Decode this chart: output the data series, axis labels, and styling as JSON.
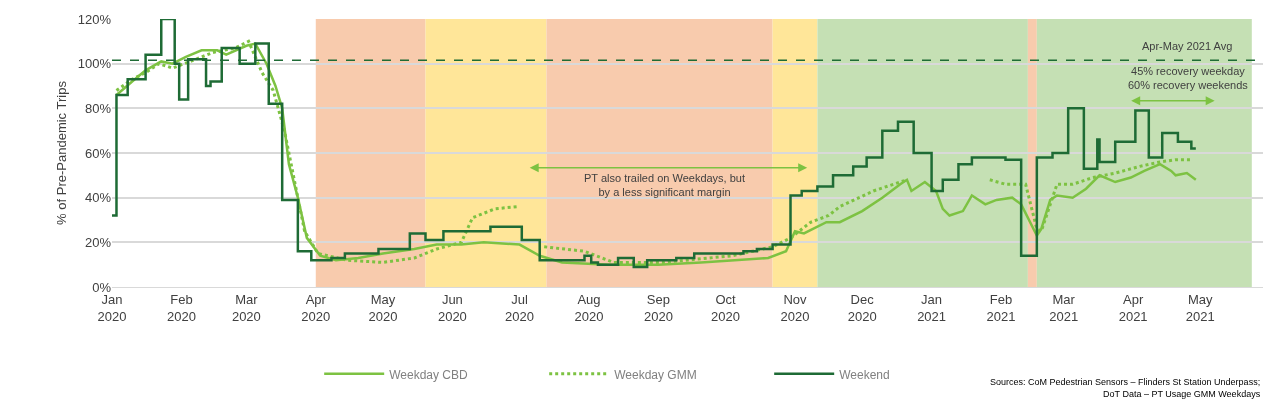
{
  "chart_data": {
    "type": "line",
    "ylabel": "% of Pre-Pandemic Trips",
    "xlim": [
      "2020-01-01",
      "2021-05-29"
    ],
    "xticks": [
      {
        "value": "2020-01-01",
        "label": "Jan\n2020"
      },
      {
        "value": "2020-02-01",
        "label": "Feb\n2020"
      },
      {
        "value": "2020-03-01",
        "label": "Mar\n2020"
      },
      {
        "value": "2020-04-01",
        "label": "Apr\n2020"
      },
      {
        "value": "2020-05-01",
        "label": "May\n2020"
      },
      {
        "value": "2020-06-01",
        "label": "Jun\n2020"
      },
      {
        "value": "2020-07-01",
        "label": "Jul\n2020"
      },
      {
        "value": "2020-08-01",
        "label": "Aug\n2020"
      },
      {
        "value": "2020-09-01",
        "label": "Sep\n2020"
      },
      {
        "value": "2020-10-01",
        "label": "Oct\n2020"
      },
      {
        "value": "2020-11-01",
        "label": "Nov\n2020"
      },
      {
        "value": "2020-12-01",
        "label": "Dec\n2020"
      },
      {
        "value": "2021-01-01",
        "label": "Jan\n2021"
      },
      {
        "value": "2021-02-01",
        "label": "Feb\n2021"
      },
      {
        "value": "2021-03-01",
        "label": "Mar\n2021"
      },
      {
        "value": "2021-04-01",
        "label": "Apr\n2021"
      },
      {
        "value": "2021-05-01",
        "label": "May\n2021"
      }
    ],
    "ylim": [
      0,
      120
    ],
    "yticks": [
      {
        "value": 0,
        "label": "0%"
      },
      {
        "value": 20,
        "label": "20%"
      },
      {
        "value": 40,
        "label": "40%"
      },
      {
        "value": 60,
        "label": "60%"
      },
      {
        "value": 80,
        "label": "80%"
      },
      {
        "value": 100,
        "label": "100%"
      },
      {
        "value": 120,
        "label": "120%"
      }
    ],
    "grid": "y",
    "legend": "bottom",
    "bands": [
      {
        "axis": "x",
        "from": "2020-04-01",
        "to": "2020-05-20",
        "color": "#f8cbad"
      },
      {
        "axis": "x",
        "from": "2020-05-20",
        "to": "2020-07-13",
        "color": "#ffe699"
      },
      {
        "axis": "x",
        "from": "2020-07-13",
        "to": "2020-10-22",
        "color": "#f8cbad"
      },
      {
        "axis": "x",
        "from": "2020-10-22",
        "to": "2020-11-11",
        "color": "#ffe699"
      },
      {
        "axis": "x",
        "from": "2020-11-11",
        "to": "2021-02-13",
        "color": "#c5e0b4"
      },
      {
        "axis": "x",
        "from": "2021-02-13",
        "to": "2021-02-17",
        "color": "#f8cbad"
      },
      {
        "axis": "x",
        "from": "2021-02-17",
        "to": "2021-05-24",
        "color": "#c5e0b4"
      }
    ],
    "ref_lines": [
      {
        "axis": "y",
        "value": 101.5,
        "label": "Apr-May 2021 Avg",
        "color": "#1e6b35",
        "line_style": "dashed"
      }
    ],
    "annotations": [
      "PT also trailed on Weekdays, but\nby a less significant margin",
      "45% recovery weekday\n60% recovery weekends",
      "Sources: CoM Pedestrian Sensors – Flinders St Station Underpass;\nDoT Data – PT Usage GMM Weekdays"
    ],
    "series": [
      {
        "name": "Weekday CBD",
        "color": "#7dc242",
        "line_style": "solid",
        "x": [
          "2020-01-03",
          "2020-01-10",
          "2020-01-16",
          "2020-01-23",
          "2020-01-28",
          "2020-02-03",
          "2020-02-10",
          "2020-02-17",
          "2020-02-21",
          "2020-03-01",
          "2020-03-05",
          "2020-03-10",
          "2020-03-14",
          "2020-03-17",
          "2020-03-20",
          "2020-03-24",
          "2020-03-28",
          "2020-04-03",
          "2020-04-10",
          "2020-04-20",
          "2020-05-01",
          "2020-05-15",
          "2020-05-25",
          "2020-06-05",
          "2020-06-15",
          "2020-07-01",
          "2020-07-10",
          "2020-07-20",
          "2020-08-10",
          "2020-09-01",
          "2020-09-20",
          "2020-10-05",
          "2020-10-20",
          "2020-10-28",
          "2020-11-01",
          "2020-11-05",
          "2020-11-15",
          "2020-11-21",
          "2020-12-01",
          "2020-12-10",
          "2020-12-18",
          "2020-12-21",
          "2020-12-23",
          "2020-12-29",
          "2021-01-03",
          "2021-01-06",
          "2021-01-09",
          "2021-01-15",
          "2021-01-19",
          "2021-01-25",
          "2021-01-30",
          "2021-02-06",
          "2021-02-10",
          "2021-02-17",
          "2021-02-19",
          "2021-02-23",
          "2021-02-26",
          "2021-03-05",
          "2021-03-11",
          "2021-03-17",
          "2021-03-24",
          "2021-03-31",
          "2021-04-06",
          "2021-04-13",
          "2021-04-18",
          "2021-04-20",
          "2021-04-25",
          "2021-04-29"
        ],
        "values": [
          86,
          92,
          97,
          101,
          100,
          103,
          106,
          106,
          104,
          108,
          109,
          100,
          90,
          80,
          55,
          40,
          22,
          14,
          12,
          13,
          15,
          17,
          19,
          19,
          20,
          19,
          14,
          11,
          10,
          10,
          11,
          12,
          13,
          16,
          25,
          24,
          29,
          29,
          34,
          40,
          46,
          48,
          43,
          47,
          43,
          35,
          32,
          34,
          41,
          37,
          39,
          40,
          37,
          23,
          26,
          39,
          41,
          40,
          44,
          50,
          47,
          49,
          52,
          55,
          52,
          50,
          51,
          48
        ]
      },
      {
        "name": "Weekday GMM",
        "color": "#7dc242",
        "line_style": "dotted",
        "x": [
          "2020-01-03",
          "2020-01-10",
          "2020-01-16",
          "2020-01-22",
          "2020-01-28",
          "2020-02-05",
          "2020-02-15",
          "2020-02-25",
          "2020-03-02",
          "2020-03-08",
          "2020-03-13",
          "2020-03-18",
          "2020-03-23",
          "2020-03-27",
          "2020-04-02",
          "2020-04-15",
          "2020-05-01",
          "2020-05-15",
          "2020-05-25",
          "2020-06-05",
          "2020-06-10",
          "2020-06-20",
          "2020-06-30",
          "2020-07-05",
          "2020-07-12",
          "2020-07-30",
          "2020-08-12",
          "2020-09-03",
          "2020-10-04",
          "2020-10-22",
          "2020-10-30",
          "2020-11-08",
          "2020-11-16",
          "2020-11-21",
          "2020-12-06",
          "2020-12-21",
          "2020-12-28",
          "2021-01-27",
          "2021-02-03",
          "2021-02-12",
          "2021-02-17",
          "2021-02-19",
          "2021-02-26",
          "2021-03-05",
          "2021-03-14",
          "2021-03-24",
          "2021-04-04",
          "2021-04-13",
          "2021-04-20",
          "2021-04-27"
        ],
        "values": [
          88,
          93,
          96,
          100,
          98,
          101,
          105,
          107,
          110,
          96,
          88,
          70,
          45,
          25,
          15,
          12,
          11,
          13,
          17,
          20,
          31,
          35,
          36,
          null,
          18,
          16,
          11,
          11,
          14,
          18,
          22,
          29,
          32,
          36,
          43,
          48,
          null,
          48,
          46,
          46,
          26,
          25,
          46,
          46,
          49,
          51,
          54,
          56,
          57,
          57
        ]
      },
      {
        "name": "Weekend",
        "type": "step",
        "color": "#1e6b35",
        "line_style": "solid",
        "x": [
          "2020-01-01",
          "2020-01-03",
          "2020-01-08",
          "2020-01-16",
          "2020-01-23",
          "2020-01-29",
          "2020-01-31",
          "2020-02-04",
          "2020-02-12",
          "2020-02-14",
          "2020-02-19",
          "2020-02-27",
          "2020-03-05",
          "2020-03-11",
          "2020-03-17",
          "2020-03-24",
          "2020-03-30",
          "2020-04-08",
          "2020-04-14",
          "2020-04-29",
          "2020-05-13",
          "2020-05-20",
          "2020-05-28",
          "2020-06-18",
          "2020-07-02",
          "2020-07-10",
          "2020-07-30",
          "2020-08-02",
          "2020-08-05",
          "2020-08-14",
          "2020-08-21",
          "2020-08-27",
          "2020-09-09",
          "2020-09-17",
          "2020-10-09",
          "2020-10-15",
          "2020-10-22",
          "2020-10-30",
          "2020-11-04",
          "2020-11-11",
          "2020-11-18",
          "2020-11-27",
          "2020-12-03",
          "2020-12-10",
          "2020-12-17",
          "2020-12-24",
          "2021-01-01",
          "2021-01-06",
          "2021-01-13",
          "2021-01-19",
          "2021-02-03",
          "2021-02-10",
          "2021-02-17",
          "2021-02-24",
          "2021-03-03",
          "2021-03-10",
          "2021-03-16",
          "2021-03-17",
          "2021-03-24",
          "2021-04-02",
          "2021-04-08",
          "2021-04-14",
          "2021-04-21",
          "2021-04-27",
          "2021-04-29"
        ],
        "values": [
          32,
          86,
          93,
          104,
          120,
          100,
          84,
          102,
          90,
          92,
          107,
          100,
          109,
          82,
          39,
          16,
          12,
          13,
          15,
          17,
          24,
          21,
          25,
          27,
          21,
          12,
          14,
          11,
          10,
          13,
          9,
          12,
          13,
          15,
          16,
          17,
          19,
          41,
          43,
          45,
          50,
          54,
          58,
          70,
          74,
          60,
          43,
          48,
          55,
          58,
          57,
          14,
          58,
          60,
          80,
          53,
          66,
          56,
          65,
          79,
          58,
          69,
          65,
          62,
          62
        ]
      }
    ]
  }
}
